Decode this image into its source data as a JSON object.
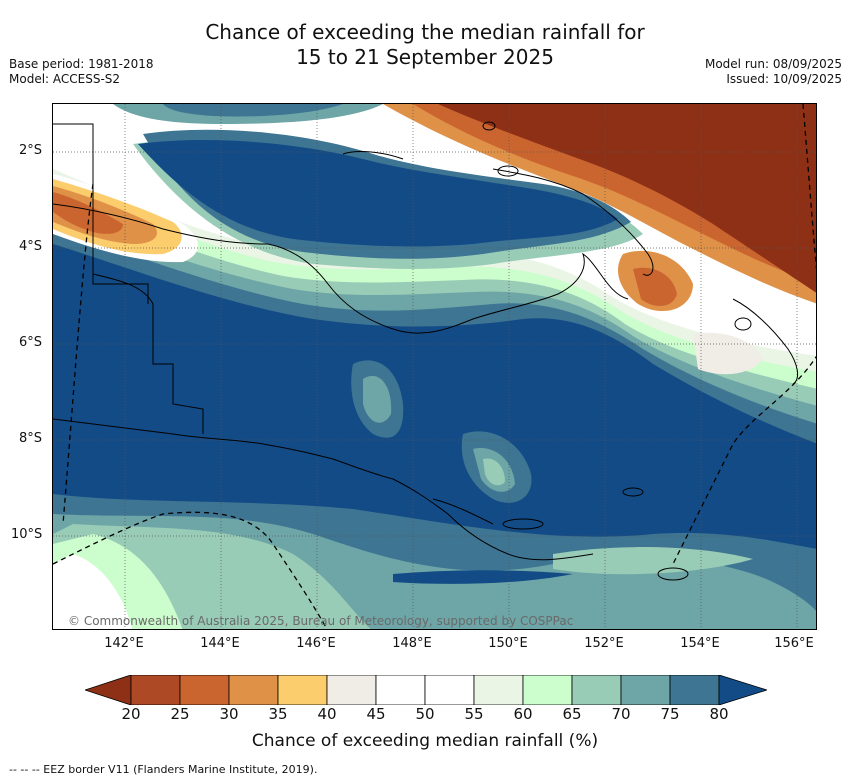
{
  "title_line1": "Chance of exceeding the median rainfall for",
  "title_line2": "15 to 21 September 2025",
  "meta_left": [
    "Base period: 1981-2018",
    "Model: ACCESS-S2"
  ],
  "meta_right": [
    "Model run: 08/09/2025",
    "Issued: 10/09/2025"
  ],
  "lat_labels": [
    "2°S",
    "4°S",
    "6°S",
    "8°S",
    "10°S"
  ],
  "lon_labels": [
    "142°E",
    "144°E",
    "146°E",
    "148°E",
    "150°E",
    "152°E",
    "154°E",
    "156°E"
  ],
  "copyright": "© Commonwealth of Australia 2025, Bureau of Meteorology, supported by COSPPac",
  "colorbar": {
    "ticks": [
      "20",
      "25",
      "30",
      "35",
      "40",
      "45",
      "50",
      "55",
      "60",
      "65",
      "70",
      "75",
      "80"
    ],
    "label": "Chance of exceeding median rainfall (%)",
    "colors": {
      "below20": "#8e3016",
      "c20_25": "#ae4925",
      "c25_30": "#cb6530",
      "c30_35": "#df9148",
      "c35_40": "#fbcd6c",
      "c40_45": "#f0ece6",
      "c45_50": "#ffffff",
      "c50_55": "#ffffff",
      "c55_60": "#eaf5e6",
      "c60_65": "#ccfdcc",
      "c65_70": "#98ccb6",
      "c70_75": "#6ea5a6",
      "c75_80": "#3e7593",
      "above80": "#134b86"
    }
  },
  "footer": "-- -- -- EEZ border V11 (Flanders Marine Institute, 2019)."
}
